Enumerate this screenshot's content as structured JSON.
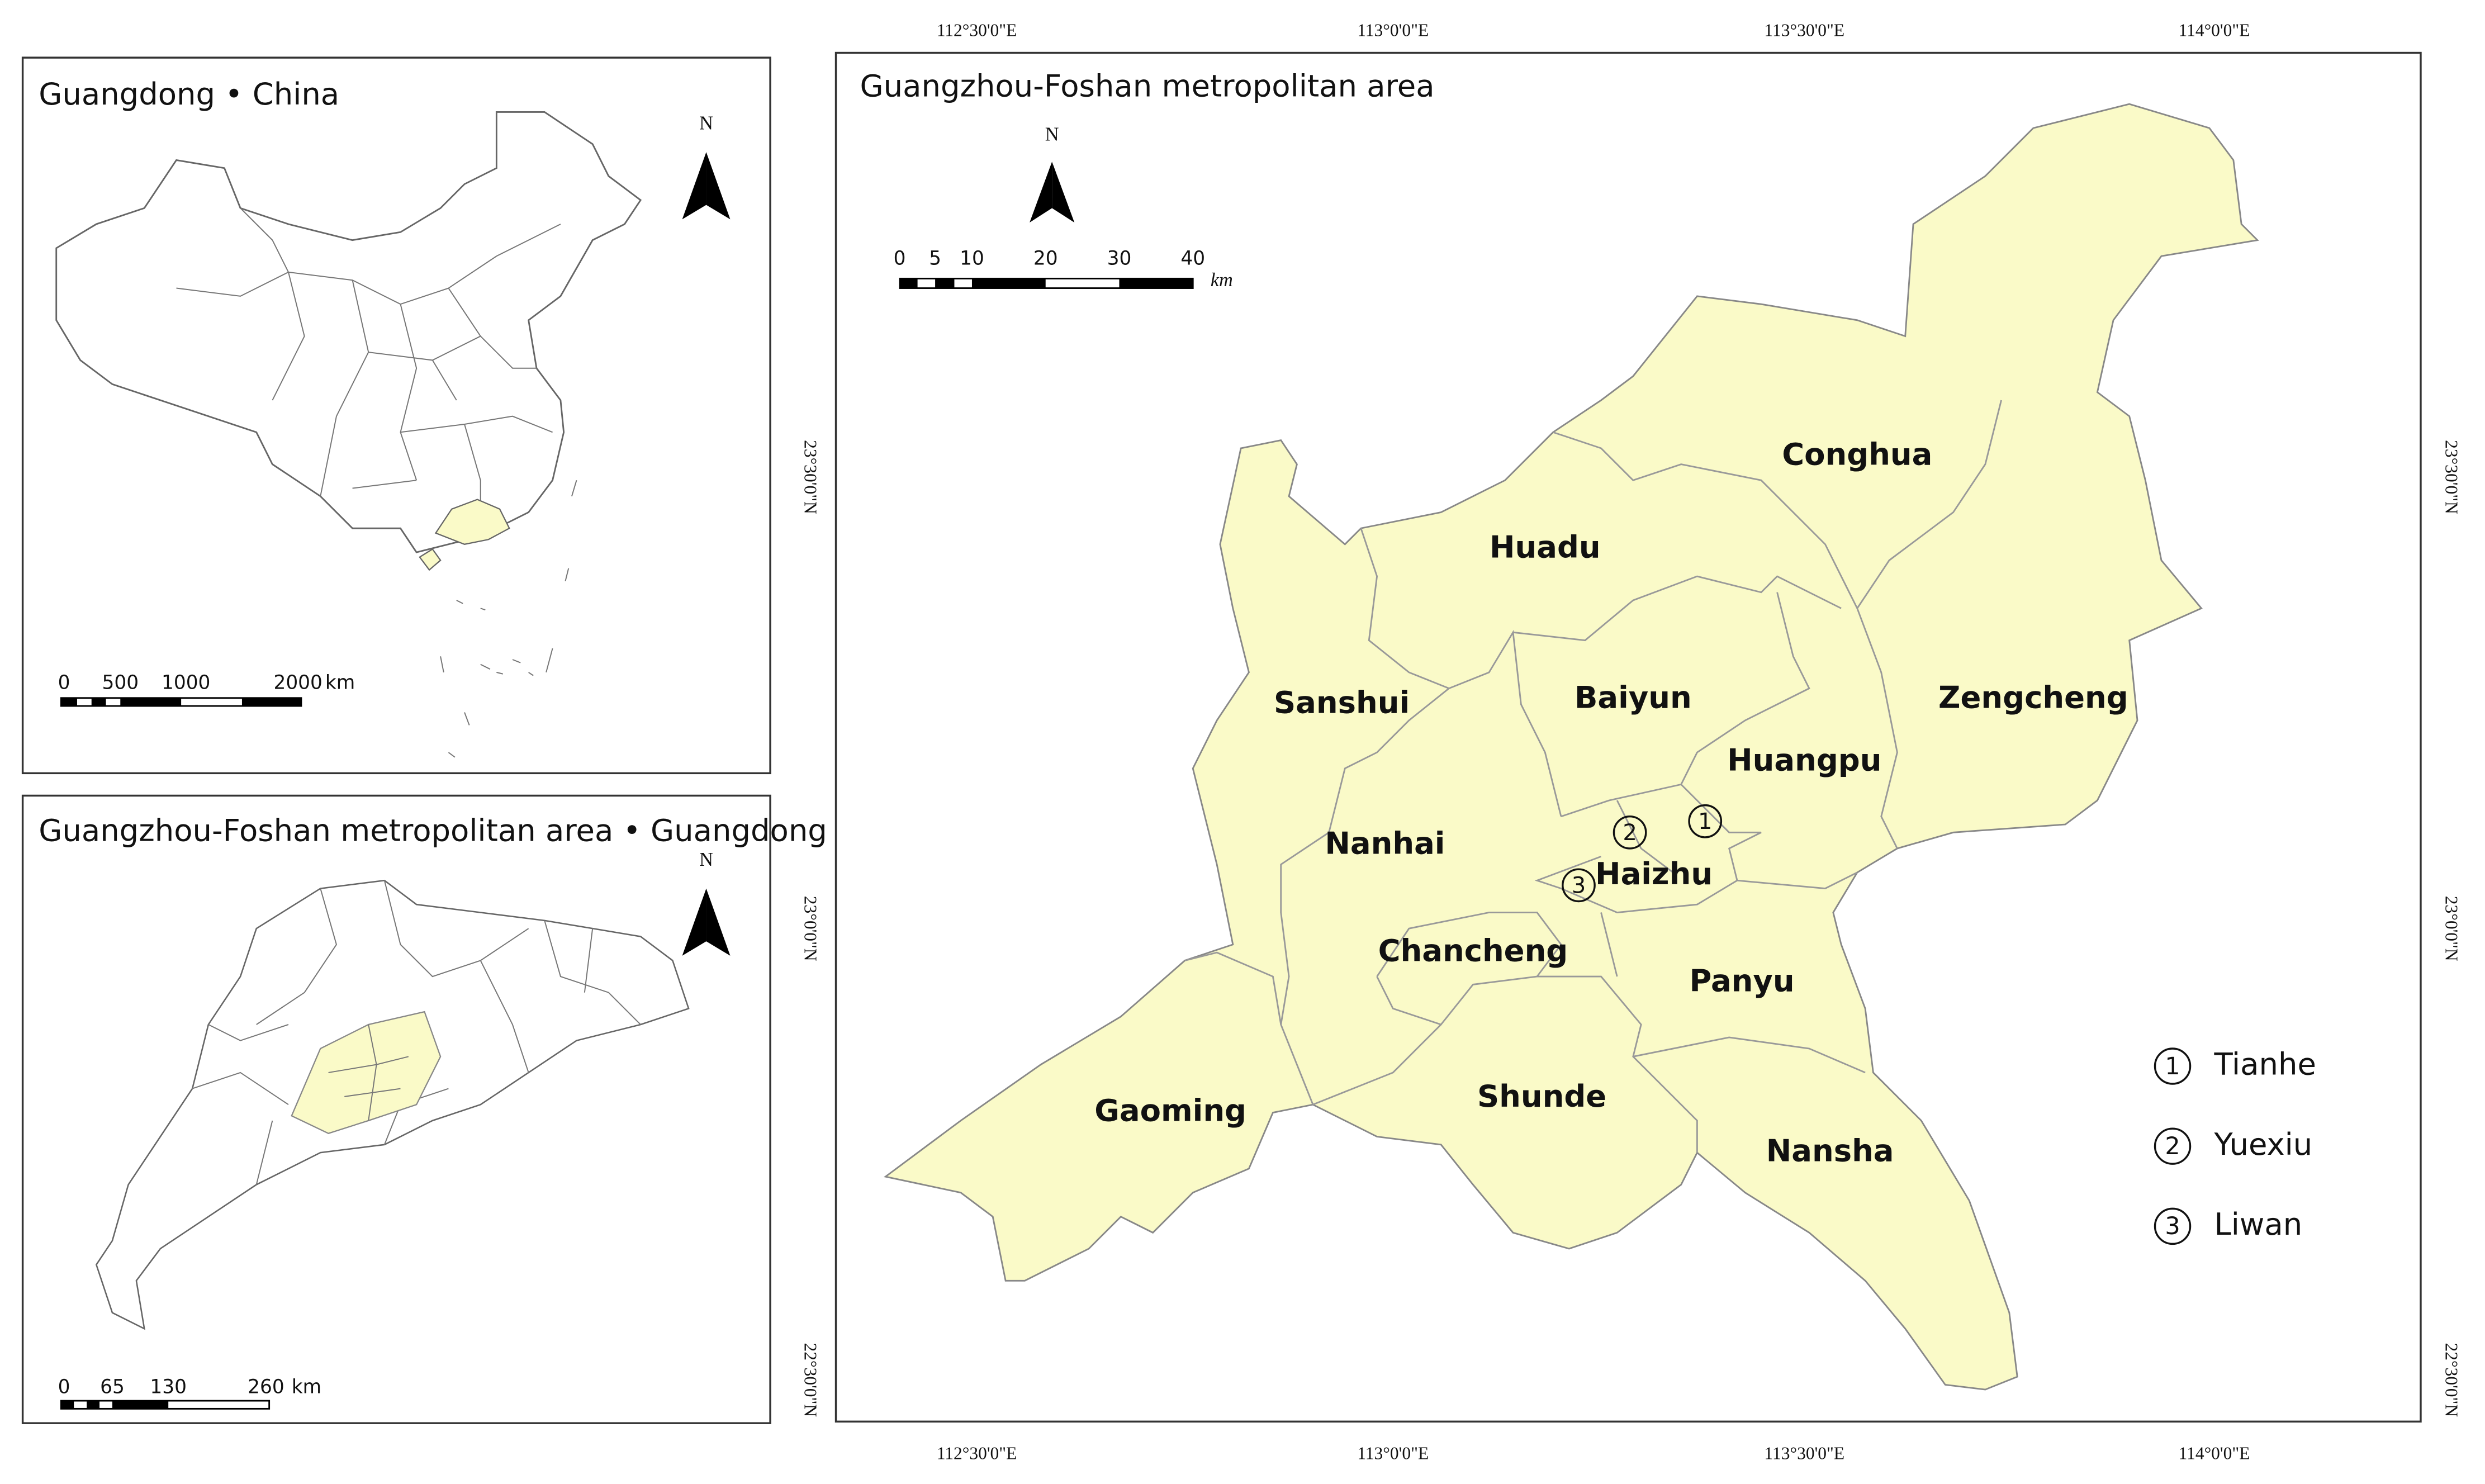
{
  "inset_china": {
    "title": "Guangdong • China",
    "north": "N",
    "scale_labels": [
      "0",
      "500",
      "1000",
      "2000"
    ],
    "scale_unit": "km"
  },
  "inset_guangdong": {
    "title": "Guangzhou-Foshan metropolitan area • Guangdong",
    "north": "N",
    "scale_labels": [
      "0",
      "65",
      "130",
      "260"
    ],
    "scale_unit": "km"
  },
  "main_map": {
    "title": "Guangzhou-Foshan metropolitan area",
    "north": "N",
    "scale_labels": [
      "0",
      "5",
      "10",
      "20",
      "30",
      "40"
    ],
    "scale_unit": "km",
    "longitude_labels": [
      "112°30'0\"E",
      "113°0'0\"E",
      "113°30'0\"E",
      "114°0'0\"E"
    ],
    "latitude_labels": [
      "23°30'0\"N",
      "23°0'0\"N",
      "22°30'0\"N"
    ],
    "districts": [
      "Conghua",
      "Huadu",
      "Zengcheng",
      "Baiyun",
      "Sanshui",
      "Huangpu",
      "Nanhai",
      "Haizhu",
      "Chancheng",
      "Panyu",
      "Shunde",
      "Gaoming",
      "Nansha"
    ],
    "numbered_districts": [
      {
        "marker": "1",
        "name": "Tianhe"
      },
      {
        "marker": "2",
        "name": "Yuexiu"
      },
      {
        "marker": "3",
        "name": "Liwan"
      }
    ]
  }
}
